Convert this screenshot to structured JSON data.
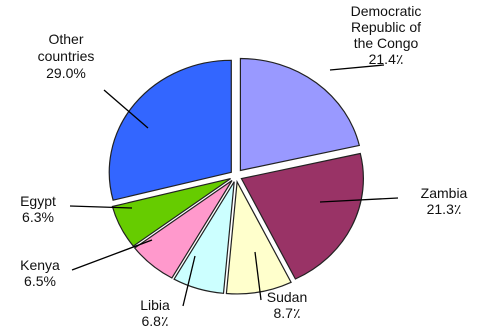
{
  "chart_data": {
    "type": "pie",
    "exploded": true,
    "slices": [
      {
        "name": "Democratic Republic of the Congo",
        "label_lines": [
          "Democratic",
          "Republic of",
          "the Congo"
        ],
        "value_label": "21.4٪",
        "value": 21.4,
        "color": "#9999ff"
      },
      {
        "name": "Zambia",
        "label_lines": [
          "Zambia"
        ],
        "value_label": "21.3٪",
        "value": 21.3,
        "color": "#993366"
      },
      {
        "name": "Sudan",
        "label_lines": [
          "Sudan"
        ],
        "value_label": "8.7٪",
        "value": 8.7,
        "color": "#ffffcc"
      },
      {
        "name": "Libia",
        "label_lines": [
          "Libia"
        ],
        "value_label": "6.8٪",
        "value": 6.8,
        "color": "#ccffff"
      },
      {
        "name": "Kenya",
        "label_lines": [
          "Kenya"
        ],
        "value_label": "6.5%",
        "value": 6.5,
        "color": "#ff99cc"
      },
      {
        "name": "Egypt",
        "label_lines": [
          "Egypt"
        ],
        "value_label": "6.3%",
        "value": 6.3,
        "color": "#66cc00"
      },
      {
        "name": "Other countries",
        "label_lines": [
          "Other",
          "countries"
        ],
        "value_label": "29.0%",
        "value": 29.0,
        "color": "#3366ff"
      }
    ]
  }
}
